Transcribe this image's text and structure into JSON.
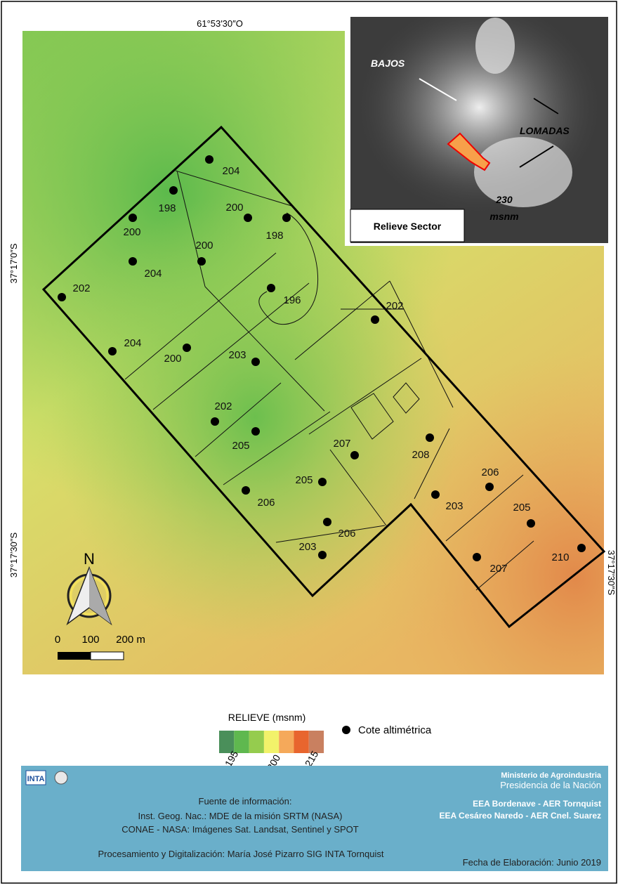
{
  "map": {
    "coordinates": {
      "top": "61°53′30″O",
      "left_upper": "37°17′0″S",
      "left_lower": "37°17′30″S",
      "right": "37°17′30″S"
    },
    "inset": {
      "title": "Relieve Sector",
      "low_label": "BAJOS",
      "high_label": "LOMADAS",
      "height": "230",
      "unit": "msnm"
    },
    "points": [
      204,
      198,
      200,
      200,
      198,
      200,
      204,
      202,
      196,
      202,
      204,
      200,
      203,
      202,
      205,
      207,
      208,
      205,
      206,
      203,
      206,
      206,
      203,
      205,
      207,
      210
    ],
    "north": "N",
    "scale": [
      "0",
      "100",
      "200 m"
    ]
  },
  "legend": {
    "title": "RELIEVE (msnm)",
    "labels": [
      "< 195",
      "200",
      "> 215"
    ],
    "point_label": "Cote altimétrica"
  },
  "footer": {
    "logo": "INTA",
    "source_title": "Fuente de información:",
    "source_lines": [
      "Inst. Geog. Nac.: MDE de la misión SRTM (NASA)",
      "CONAE - NASA: Imágenes Sat. Landsat, Sentinel y SPOT"
    ],
    "processing": "Procesamiento y Digitalización: María José Pizarro SIG INTA Tornquist",
    "ministry": "Ministerio de Agroindustria",
    "presidency": "Presidencia de la Nación",
    "station_1": "EEA Bordenave - AER Tornquist",
    "station_2": "EEA Cesáreo Naredo - AER Cnel. Suarez",
    "date": "Fecha de Elaboración: Junio 2019"
  }
}
